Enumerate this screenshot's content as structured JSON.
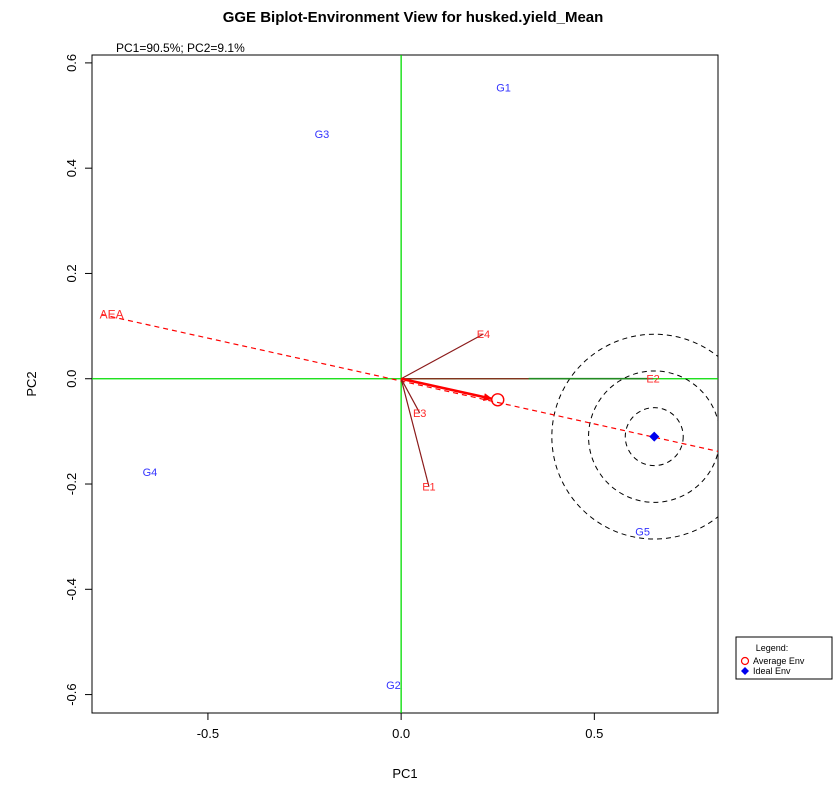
{
  "chart_data": {
    "type": "scatter",
    "title": "GGE Biplot-Environment View for husked.yield_Mean",
    "subtitle": "PC1=90.5%; PC2=9.1%",
    "xlabel": "PC1",
    "ylabel": "PC2",
    "xlim": [
      -0.8,
      0.82
    ],
    "ylim": [
      -0.635,
      0.615
    ],
    "xticks": [
      -0.5,
      0.0,
      0.5
    ],
    "xtick_labels": [
      "-0.5",
      "0.0",
      "0.5"
    ],
    "yticks": [
      -0.6,
      -0.4,
      -0.2,
      0.0,
      0.2,
      0.4,
      0.6
    ],
    "ytick_labels": [
      "-0.6",
      "-0.4",
      "-0.2",
      "0.0",
      "0.2",
      "0.4",
      "0.6"
    ],
    "genotypes": [
      {
        "label": "G1",
        "x": 0.265,
        "y": 0.553
      },
      {
        "label": "G2",
        "x": -0.02,
        "y": -0.582
      },
      {
        "label": "G3",
        "x": -0.205,
        "y": 0.465
      },
      {
        "label": "G4",
        "x": -0.65,
        "y": -0.177
      },
      {
        "label": "G5",
        "x": 0.625,
        "y": -0.29
      }
    ],
    "environments": [
      {
        "label": "E1",
        "x": 0.072,
        "y": -0.205
      },
      {
        "label": "E2",
        "x": 0.652,
        "y": 0.0
      },
      {
        "label": "E3",
        "x": 0.048,
        "y": -0.065
      },
      {
        "label": "E4",
        "x": 0.213,
        "y": 0.085
      }
    ],
    "aea_label": "AEA",
    "aea_start": [
      -0.775,
      0.122
    ],
    "aea_end": [
      0.82,
      -0.138
    ],
    "average_env": {
      "x": 0.25,
      "y": -0.04
    },
    "ideal_env": {
      "x": 0.655,
      "y": -0.11
    },
    "circle_radii": [
      0.075,
      0.17,
      0.265
    ],
    "colors": {
      "reference_lines": "#00dd00",
      "env_vectors": "#8b1a1a",
      "env_labels": "#ff2a2a",
      "genotype_labels": "#3333ff",
      "aea_line": "#ff0000",
      "average_env": "#ff0000",
      "ideal_env": "#0000ee",
      "circles": "#000000",
      "e2_overlay": "#228b22"
    },
    "legend": {
      "title": "Legend:",
      "position": "right",
      "entries": [
        {
          "label": "Average Env",
          "marker": "open-circle",
          "color": "#ff0000"
        },
        {
          "label": "Ideal Env",
          "marker": "filled-diamond",
          "color": "#0000ee"
        }
      ]
    },
    "grid": false
  }
}
